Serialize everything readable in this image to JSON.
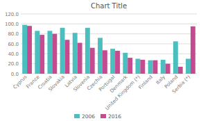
{
  "chart_data": {
    "type": "bar",
    "title": "Chart Title",
    "categories": [
      "Cyprus",
      "France",
      "Croatia",
      "Slovakia",
      "Latvia",
      "Slovenia",
      "Czechia",
      "Portugal",
      "Denmark",
      "United Kingdom (*)",
      "Finland",
      "Italy",
      "Poland",
      "Serbia (*)"
    ],
    "series": [
      {
        "name": "2006",
        "color": "#4BBFBF",
        "values": [
          98,
          86,
          86,
          92,
          82,
          92,
          72,
          50,
          42,
          30,
          27,
          28,
          65,
          30
        ]
      },
      {
        "name": "2016",
        "color": "#C44B90",
        "values": [
          96,
          78,
          80,
          68,
          62,
          52,
          47,
          46,
          32,
          28,
          27,
          20,
          14,
          95
        ]
      }
    ],
    "ylim": [
      0,
      120
    ],
    "yticks": [
      {
        "value": 0,
        "label": "0.0"
      },
      {
        "value": 20,
        "label": "20.0"
      },
      {
        "value": 40,
        "label": "40.0"
      },
      {
        "value": 60,
        "label": "60.0"
      },
      {
        "value": 80,
        "label": "80.0"
      },
      {
        "value": 100,
        "label": "100.0"
      },
      {
        "value": 120,
        "label": "120.0"
      }
    ],
    "grid": true,
    "legend": "bottom"
  }
}
